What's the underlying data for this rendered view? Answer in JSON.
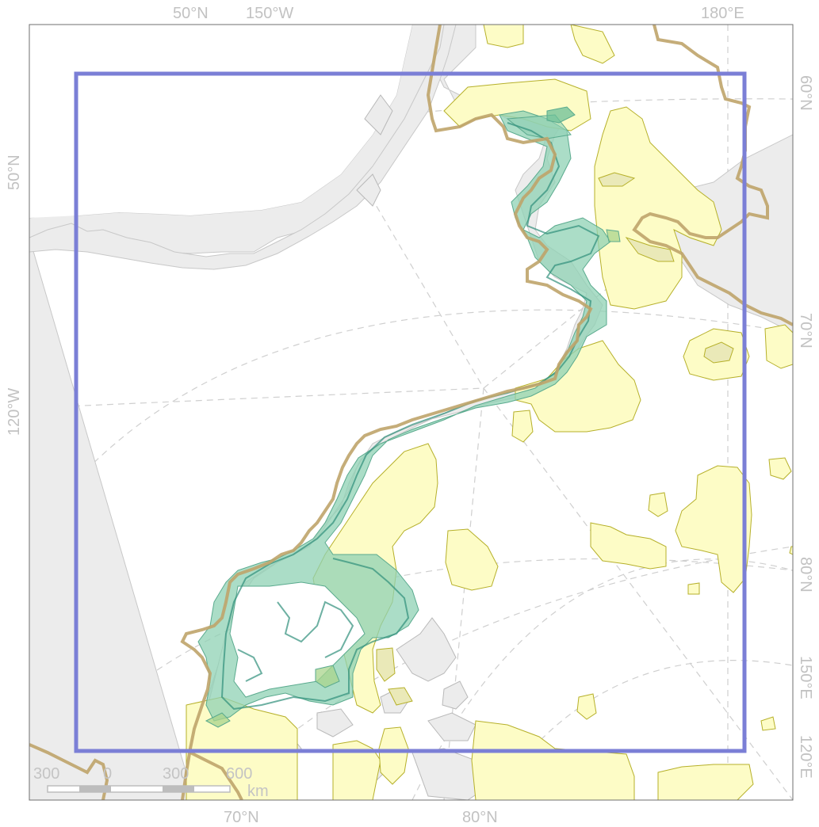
{
  "map": {
    "graticule_labels": {
      "top": [
        "50°N",
        "150°W",
        "180°E"
      ],
      "left": [
        "50°N",
        "120°W"
      ],
      "right": [
        "60°N",
        "70°N",
        "80°N",
        "150°E",
        "120°E"
      ],
      "bottom": [
        "70°N",
        "80°N"
      ]
    },
    "scale_bar": {
      "ticks": [
        "300",
        "0",
        "300",
        "600"
      ],
      "unit": "km"
    },
    "colors": {
      "land": "#ececec",
      "land_border": "#c8c8c8",
      "protected_area_fill": "#fdfcc6",
      "protected_area_border": "#b6b02a",
      "habitat_fill": "#8fd1b4",
      "habitat_dark": "#2f8f7a",
      "region_border": "#bfa46a",
      "study_extent": "#7b7fd6",
      "graticule": "#cfcfcf"
    }
  }
}
